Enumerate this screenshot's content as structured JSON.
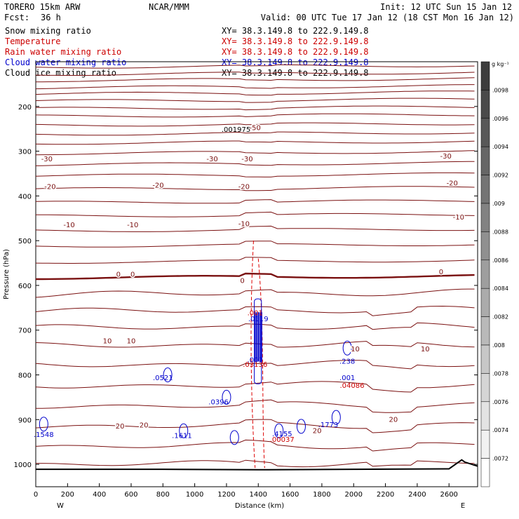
{
  "header": {
    "model": "TORERO  15km ARW",
    "center": "NCAR/MMM",
    "init": "Init: 12 UTC Sun 15 Jan 12",
    "fcst_label": "Fcst:",
    "fcst_value": "36 h",
    "valid": "Valid: 00 UTC Tue 17 Jan 12 (18 CST Mon 16 Jan 12)"
  },
  "fields": [
    {
      "name": "Snow mixing ratio",
      "xy": "XY=  38.3.149.8 to 222.9.149.8",
      "color": "#000000"
    },
    {
      "name": "Temperature",
      "xy": "XY=  38.3.149.8 to 222.9.149.8",
      "color": "#cc0000"
    },
    {
      "name": "Rain water mixing ratio",
      "xy": "XY=  38.3.149.8 to 222.9.149.8",
      "color": "#cc0000"
    },
    {
      "name": "Cloud water mixing ratio",
      "xy": "XY=  38.3.149.8 to 222.9.149.8",
      "color": "#0000cc"
    },
    {
      "name": "Cloud ice mixing ratio",
      "xy": "XY=  38.3.149.8 to 222.9.149.8",
      "color": "#000000"
    }
  ],
  "chart_data": {
    "type": "cross-section",
    "xlabel": "Distance (km)",
    "ylabel": "Pressure (hPa)",
    "xlim": [
      0,
      2780
    ],
    "ylim": [
      1050,
      100
    ],
    "x_ticks": [
      "0",
      "200",
      "400",
      "600",
      "800",
      "1000",
      "1200",
      "1400",
      "1600",
      "1800",
      "2000",
      "2200",
      "2400",
      "2600"
    ],
    "y_ticks": [
      "200",
      "300",
      "400",
      "500",
      "600",
      "700",
      "800",
      "900",
      "1000"
    ],
    "left_end": "W",
    "right_end": "E",
    "colorbar": {
      "unit": "g kg⁻¹",
      "ticks": [
        ".0098",
        ".0096",
        ".0094",
        ".0092",
        ".009",
        ".0088",
        ".0086",
        ".0084",
        ".0082",
        ".008",
        ".0078",
        ".0076",
        ".0074",
        ".0072"
      ]
    },
    "temperature_labels": [
      {
        "text": "-50",
        "x": 1380,
        "p": 248
      },
      {
        "text": "-30",
        "x": 70,
        "p": 318
      },
      {
        "text": "-30",
        "x": 1110,
        "p": 318
      },
      {
        "text": "-30",
        "x": 1330,
        "p": 318
      },
      {
        "text": "-30",
        "x": 2580,
        "p": 312
      },
      {
        "text": "-20",
        "x": 90,
        "p": 380
      },
      {
        "text": "-20",
        "x": 770,
        "p": 377
      },
      {
        "text": "-20",
        "x": 1310,
        "p": 380
      },
      {
        "text": "-20",
        "x": 2620,
        "p": 372
      },
      {
        "text": "-10",
        "x": 210,
        "p": 465
      },
      {
        "text": "-10",
        "x": 610,
        "p": 465
      },
      {
        "text": "-10",
        "x": 1310,
        "p": 463
      },
      {
        "text": "-10",
        "x": 2660,
        "p": 448
      },
      {
        "text": "0",
        "x": 520,
        "p": 576
      },
      {
        "text": "0",
        "x": 610,
        "p": 576
      },
      {
        "text": "0",
        "x": 1300,
        "p": 590
      },
      {
        "text": "0",
        "x": 2550,
        "p": 570
      },
      {
        "text": "10",
        "x": 450,
        "p": 725
      },
      {
        "text": "10",
        "x": 600,
        "p": 725
      },
      {
        "text": "10",
        "x": 2010,
        "p": 743
      },
      {
        "text": "10",
        "x": 2450,
        "p": 743
      },
      {
        "text": "20",
        "x": 530,
        "p": 915
      },
      {
        "text": "20",
        "x": 680,
        "p": 913
      },
      {
        "text": "20",
        "x": 1770,
        "p": 925
      },
      {
        "text": "20",
        "x": 2250,
        "p": 900
      }
    ],
    "extrema_labels": [
      {
        "text": ".001975",
        "x": 1260,
        "p": 257,
        "color": "#000000"
      },
      {
        "text": ".001",
        "x": 1380,
        "p": 667,
        "color": "#cc0000"
      },
      {
        "text": ".0119",
        "x": 1400,
        "p": 680,
        "color": "#0000cc"
      },
      {
        "text": ".03136",
        "x": 1380,
        "p": 782,
        "color": "#cc0000"
      },
      {
        "text": ".001",
        "x": 1380,
        "p": 772,
        "color": "#0000cc"
      },
      {
        "text": ".0521",
        "x": 800,
        "p": 812,
        "color": "#0000cc"
      },
      {
        "text": ".0396",
        "x": 1150,
        "p": 866,
        "color": "#0000cc"
      },
      {
        "text": ".238",
        "x": 1960,
        "p": 775,
        "color": "#0000cc"
      },
      {
        "text": ".001",
        "x": 1960,
        "p": 812,
        "color": "#0000cc"
      },
      {
        "text": ".04086",
        "x": 1990,
        "p": 829,
        "color": "#cc0000"
      },
      {
        "text": ".1548",
        "x": 50,
        "p": 939,
        "color": "#0000cc"
      },
      {
        "text": ".1611",
        "x": 920,
        "p": 941,
        "color": "#0000cc"
      },
      {
        "text": ".4155",
        "x": 1550,
        "p": 937,
        "color": "#0000cc"
      },
      {
        "text": ".00037",
        "x": 1550,
        "p": 950,
        "color": "#cc0000"
      },
      {
        "text": ".1773",
        "x": 1840,
        "p": 917,
        "color": "#0000cc"
      }
    ],
    "terrain": [
      [
        0,
        1011
      ],
      [
        800,
        1011
      ],
      [
        1400,
        1012
      ],
      [
        2000,
        1011
      ],
      [
        2600,
        1010
      ],
      [
        2680,
        990
      ],
      [
        2700,
        995
      ],
      [
        2780,
        1004
      ]
    ]
  }
}
